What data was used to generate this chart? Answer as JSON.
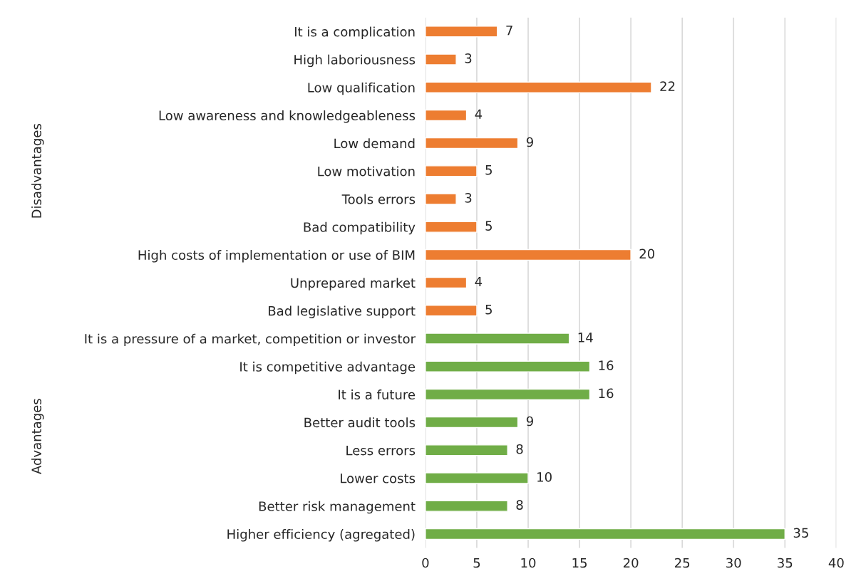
{
  "chart_data": {
    "type": "bar",
    "orientation": "horizontal",
    "categories": [
      "It is a complication",
      "High laboriousness",
      "Low qualification",
      "Low awareness and knowledgeableness",
      "Low demand",
      "Low motivation",
      "Tools errors",
      "Bad compatibility",
      "High costs of implementation or use of BIM",
      "Unprepared market",
      "Bad legislative support",
      "It is a pressure of a market, competition or investor",
      "It is competitive advantage",
      "It is a future",
      "Better audit tools",
      "Less errors",
      "Lower costs",
      "Better risk management",
      "Higher efficiency (agregated)"
    ],
    "values": [
      7,
      3,
      22,
      4,
      9,
      5,
      3,
      5,
      20,
      4,
      5,
      14,
      16,
      16,
      9,
      8,
      10,
      8,
      35
    ],
    "colors": [
      "#ed7d31",
      "#ed7d31",
      "#ed7d31",
      "#ed7d31",
      "#ed7d31",
      "#ed7d31",
      "#ed7d31",
      "#ed7d31",
      "#ed7d31",
      "#ed7d31",
      "#ed7d31",
      "#70ad47",
      "#70ad47",
      "#70ad47",
      "#70ad47",
      "#70ad47",
      "#70ad47",
      "#70ad47",
      "#70ad47"
    ],
    "annotations": [
      "Disadvantages",
      "Advantages"
    ],
    "xlim": [
      0,
      40
    ],
    "xticks": [
      0,
      5,
      10,
      15,
      20,
      25,
      30,
      35,
      40
    ],
    "grid": "x",
    "data_labels": true,
    "legend": false
  }
}
